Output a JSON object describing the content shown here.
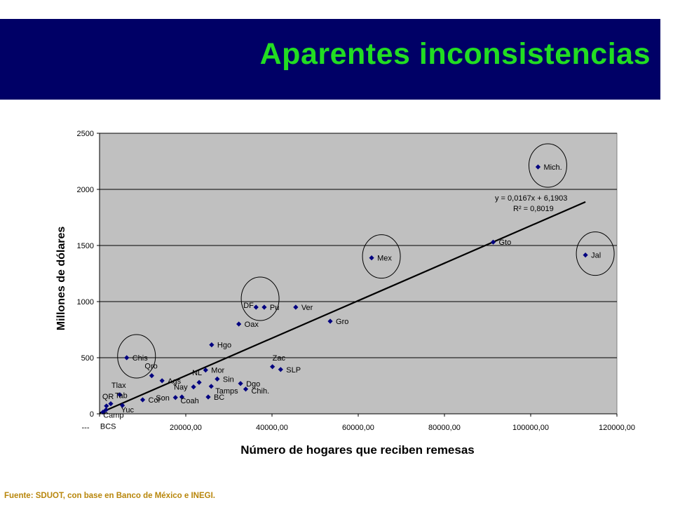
{
  "slide": {
    "title": "Aparentes inconsistencias",
    "source": "Fuente: SDUOT, con base en Banco de México e INEGI.",
    "banner_color": "#000066",
    "title_color": "#22dd22"
  },
  "chart_data": {
    "type": "scatter",
    "xlabel": "Número de hogares que reciben remesas",
    "ylabel": "Millones de dólares",
    "xlim": [
      0,
      120000
    ],
    "ylim": [
      0,
      2500
    ],
    "xticks": [
      "---",
      "20000,00",
      "40000,00",
      "60000,00",
      "80000,00",
      "100000,00",
      "120000,00"
    ],
    "xtick_values": [
      0,
      20000,
      40000,
      60000,
      80000,
      100000,
      120000
    ],
    "yticks": [
      "0",
      "500",
      "1000",
      "1500",
      "2000",
      "2500"
    ],
    "ytick_values": [
      0,
      500,
      1000,
      1500,
      2000,
      2500
    ],
    "grid": "horizontal",
    "plot_background": "#c0c0c0",
    "marker_color": "#000080",
    "points": [
      {
        "label": "Mich.",
        "x": 101700,
        "y": 2200
      },
      {
        "label": "Gto",
        "x": 91300,
        "y": 1530
      },
      {
        "label": "Jal",
        "x": 112700,
        "y": 1415
      },
      {
        "label": "Mex",
        "x": 63100,
        "y": 1390
      },
      {
        "label": "DF",
        "x": 36300,
        "y": 950
      },
      {
        "label": "Pu",
        "x": 38200,
        "y": 950
      },
      {
        "label": "Ver",
        "x": 45500,
        "y": 950
      },
      {
        "label": "Gro",
        "x": 53500,
        "y": 825
      },
      {
        "label": "Oax",
        "x": 32300,
        "y": 800
      },
      {
        "label": "Hgo",
        "x": 26000,
        "y": 615
      },
      {
        "label": "Chis",
        "x": 6300,
        "y": 500
      },
      {
        "label": "Zac",
        "x": 40100,
        "y": 420
      },
      {
        "label": "SLP",
        "x": 42000,
        "y": 395
      },
      {
        "label": "Mor",
        "x": 24600,
        "y": 390
      },
      {
        "label": "Qro",
        "x": 12100,
        "y": 340
      },
      {
        "label": "Sin",
        "x": 27300,
        "y": 310
      },
      {
        "label": "Ags",
        "x": 14500,
        "y": 295
      },
      {
        "label": "NL",
        "x": 23100,
        "y": 280
      },
      {
        "label": "Dgo",
        "x": 32700,
        "y": 270
      },
      {
        "label": "Nay",
        "x": 21800,
        "y": 240
      },
      {
        "label": "Tamps",
        "x": 25900,
        "y": 245
      },
      {
        "label": "Chih.",
        "x": 33900,
        "y": 220
      },
      {
        "label": "Tlax",
        "x": 4700,
        "y": 170
      },
      {
        "label": "Son",
        "x": 17600,
        "y": 145
      },
      {
        "label": "Coah",
        "x": 19100,
        "y": 150
      },
      {
        "label": "BC",
        "x": 25200,
        "y": 150
      },
      {
        "label": "Col",
        "x": 10000,
        "y": 125
      },
      {
        "label": "Tab",
        "x": 2600,
        "y": 90
      },
      {
        "label": "QR",
        "x": 1600,
        "y": 70
      },
      {
        "label": "Yuc",
        "x": 5300,
        "y": 75
      },
      {
        "label": "Camp",
        "x": 1500,
        "y": 35
      },
      {
        "label": "BCS",
        "x": 800,
        "y": 15
      }
    ],
    "trendline": {
      "equation": "y = 0,0167x + 6,1903",
      "r2": "R² = 0,8019",
      "x_range": [
        0,
        112700
      ]
    },
    "highlighted": [
      "Chis",
      "DF",
      "Mex",
      "Mich.",
      "Jal"
    ]
  }
}
